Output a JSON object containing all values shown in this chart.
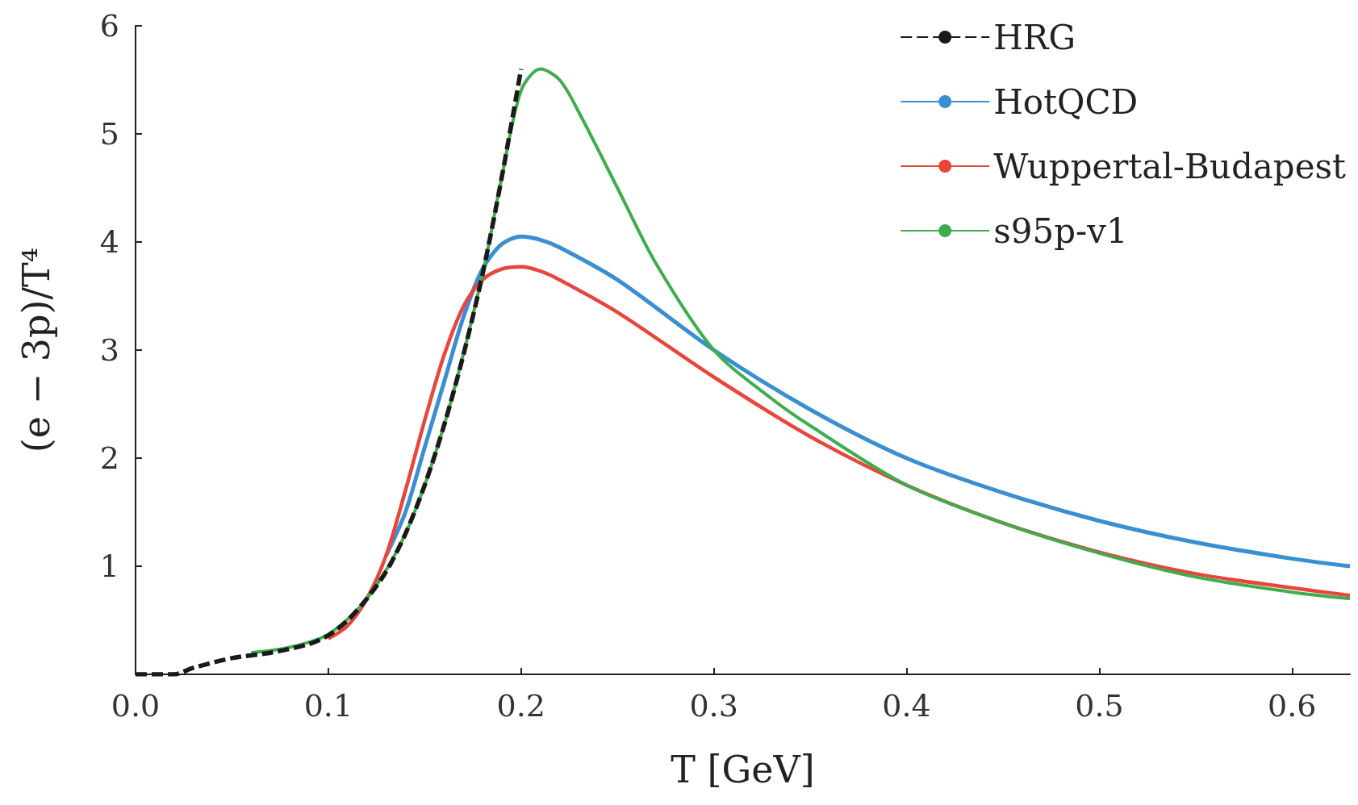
{
  "chart_data": {
    "type": "line",
    "xlabel": "T [GeV]",
    "ylabel": "(e − 3p)/T⁴",
    "xlim": [
      0,
      0.63
    ],
    "xticks": [
      {
        "value": 0,
        "label": "0.0"
      },
      0.1,
      0.2,
      0.3,
      0.4,
      0.5,
      0.6
    ],
    "ylim": [
      0,
      6
    ],
    "yticks": [
      1,
      2,
      3,
      4,
      5,
      6
    ],
    "grid": false,
    "legend": "top right",
    "marker": "none",
    "series": [
      {
        "name": "HRG",
        "color": "#1a1a1a",
        "line_style": "dashed",
        "x": [
          0,
          0.02,
          0.03,
          0.05,
          0.07,
          0.09,
          0.1,
          0.11,
          0.12,
          0.13,
          0.14,
          0.15,
          0.16,
          0.17,
          0.18,
          0.19,
          0.2
        ],
        "values": [
          0,
          0,
          0.06,
          0.15,
          0.2,
          0.28,
          0.36,
          0.5,
          0.7,
          0.95,
          1.3,
          1.75,
          2.3,
          2.95,
          3.7,
          4.6,
          5.6
        ]
      },
      {
        "name": "HotQCD",
        "color": "#3a8fd1",
        "line_style": "solid",
        "x": [
          0.13,
          0.14,
          0.15,
          0.16,
          0.17,
          0.18,
          0.19,
          0.2,
          0.21,
          0.22,
          0.25,
          0.3,
          0.35,
          0.4,
          0.45,
          0.5,
          0.55,
          0.6,
          0.63
        ],
        "values": [
          1.1,
          1.5,
          2.1,
          2.7,
          3.3,
          3.75,
          3.98,
          4.05,
          4.02,
          3.95,
          3.65,
          3.0,
          2.45,
          2.0,
          1.68,
          1.42,
          1.22,
          1.07,
          1.0
        ]
      },
      {
        "name": "Wuppertal-Budapest",
        "color": "#e8453c",
        "line_style": "solid",
        "x": [
          0.1,
          0.11,
          0.12,
          0.13,
          0.14,
          0.15,
          0.16,
          0.17,
          0.18,
          0.19,
          0.2,
          0.21,
          0.22,
          0.25,
          0.3,
          0.35,
          0.4,
          0.45,
          0.5,
          0.55,
          0.6,
          0.63
        ],
        "values": [
          0.33,
          0.45,
          0.7,
          1.1,
          1.7,
          2.35,
          2.95,
          3.4,
          3.65,
          3.75,
          3.77,
          3.73,
          3.65,
          3.35,
          2.75,
          2.2,
          1.75,
          1.4,
          1.13,
          0.93,
          0.8,
          0.73
        ]
      },
      {
        "name": "s95p-v1",
        "color": "#3fac4e",
        "line_style": "solid",
        "x": [
          0.06,
          0.08,
          0.1,
          0.12,
          0.14,
          0.16,
          0.18,
          0.19,
          0.2,
          0.21,
          0.22,
          0.23,
          0.25,
          0.27,
          0.3,
          0.33,
          0.35,
          0.4,
          0.45,
          0.5,
          0.55,
          0.6,
          0.63
        ],
        "values": [
          0.2,
          0.25,
          0.37,
          0.7,
          1.3,
          2.3,
          3.7,
          4.6,
          5.4,
          5.6,
          5.5,
          5.2,
          4.5,
          3.8,
          3.0,
          2.55,
          2.3,
          1.75,
          1.4,
          1.12,
          0.9,
          0.76,
          0.7
        ]
      }
    ]
  }
}
